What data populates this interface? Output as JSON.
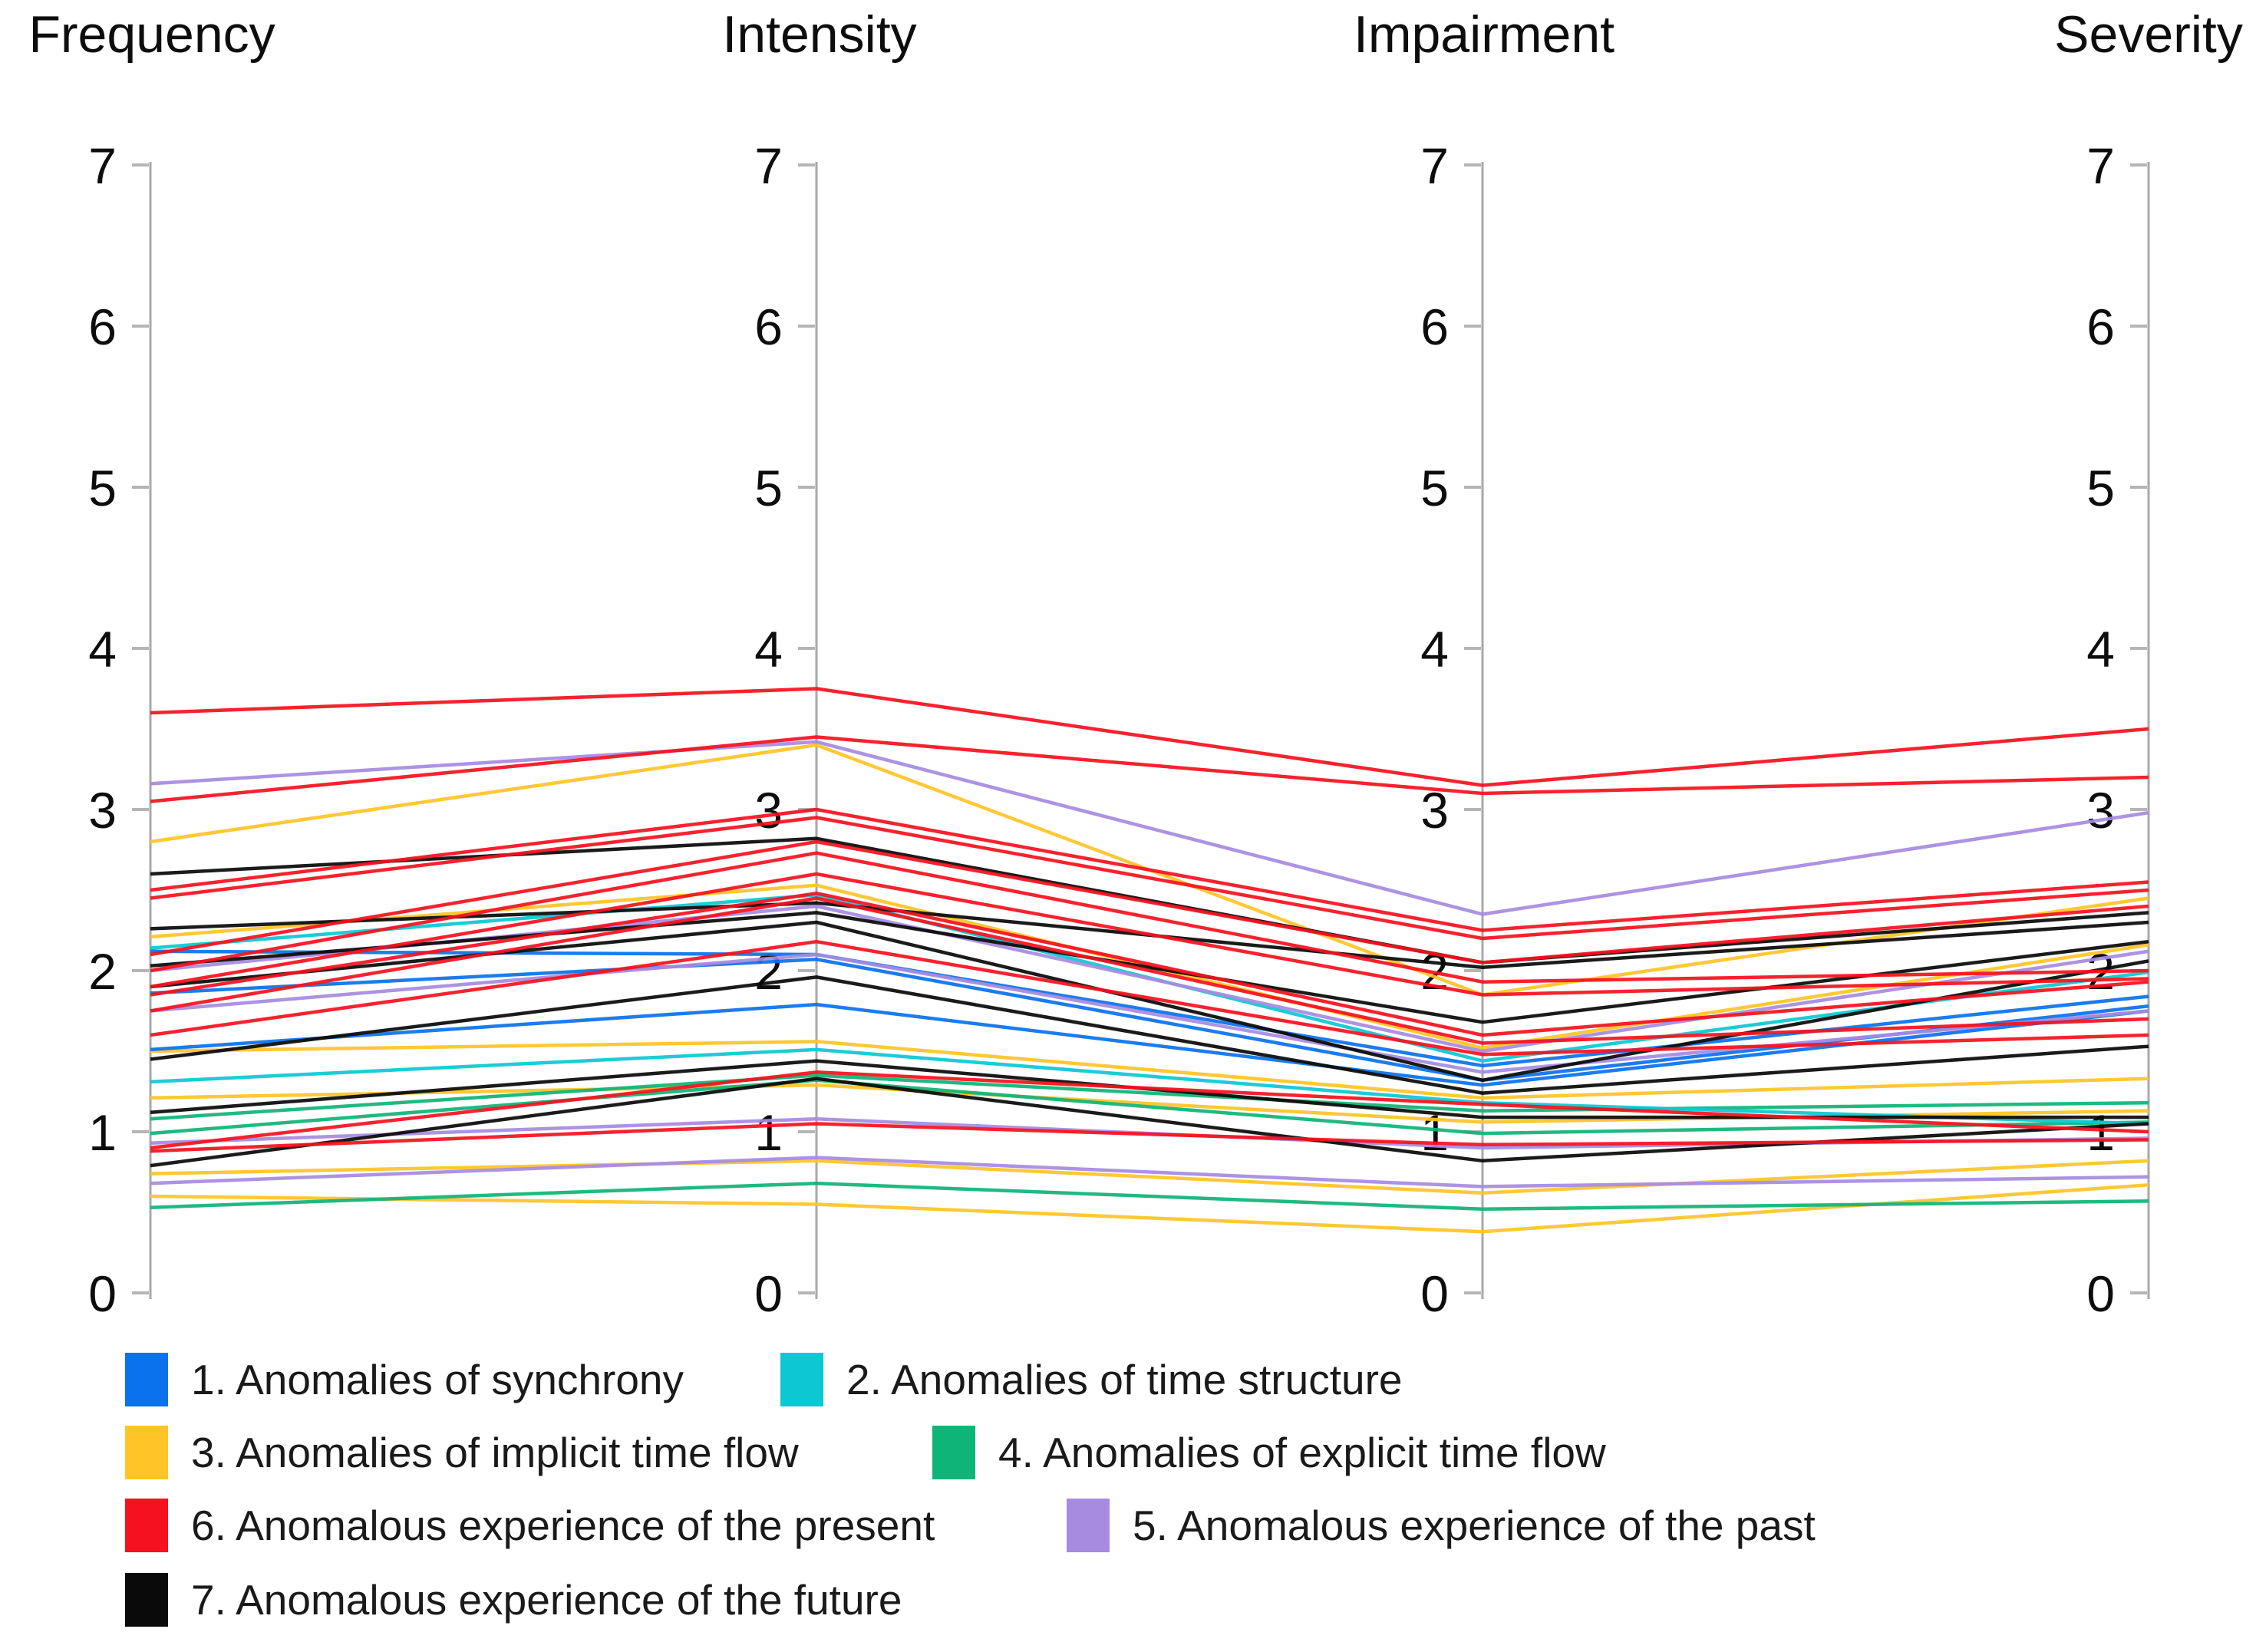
{
  "chart_data": {
    "type": "line",
    "variant": "parallel-coordinates",
    "title": "",
    "axes": [
      {
        "label": "Frequency"
      },
      {
        "label": "Intensity"
      },
      {
        "label": "Impairment"
      },
      {
        "label": "Severity"
      }
    ],
    "axis_range": [
      0,
      7
    ],
    "tick_step": 1,
    "grid": false,
    "legend_position": "bottom",
    "series": [
      {
        "name": "1. Anomalies of synchrony",
        "color": "#0a72ec",
        "lines": [
          [
            2.12,
            2.1,
            1.41,
            1.84
          ],
          [
            1.86,
            2.07,
            1.32,
            1.78
          ],
          [
            1.51,
            1.79,
            1.29,
            1.75
          ]
        ]
      },
      {
        "name": "2. Anomalies of time structure",
        "color": "#0bc8d3",
        "lines": [
          [
            2.14,
            2.47,
            1.44,
            1.99
          ],
          [
            1.31,
            1.51,
            1.18,
            1.05
          ]
        ]
      },
      {
        "name": "3. Anomalies of implicit time flow",
        "color": "#ffc427",
        "lines": [
          [
            2.8,
            3.4,
            1.85,
            2.45
          ],
          [
            2.21,
            2.53,
            1.52,
            2.16
          ],
          [
            1.5,
            1.56,
            1.21,
            1.33
          ],
          [
            1.21,
            1.29,
            1.06,
            1.13
          ],
          [
            0.74,
            0.82,
            0.62,
            0.82
          ],
          [
            0.6,
            0.55,
            0.38,
            0.67
          ]
        ]
      },
      {
        "name": "4. Anomalies of explicit time flow",
        "color": "#0fb478",
        "lines": [
          [
            1.08,
            1.35,
            1.13,
            1.18
          ],
          [
            0.99,
            1.32,
            0.99,
            1.06
          ],
          [
            0.53,
            0.68,
            0.52,
            0.57
          ]
        ]
      },
      {
        "name": "5. Anomalous experience of the past",
        "color": "#a78be1",
        "lines": [
          [
            3.16,
            3.42,
            2.35,
            2.98
          ],
          [
            2.0,
            2.4,
            1.5,
            2.12
          ],
          [
            1.75,
            2.1,
            1.37,
            1.75
          ],
          [
            0.93,
            1.08,
            0.9,
            0.96
          ],
          [
            0.68,
            0.84,
            0.66,
            0.72
          ]
        ]
      },
      {
        "name": "6. Anomalous experience of the present",
        "color": "#f5111e",
        "lines": [
          [
            3.6,
            3.75,
            3.15,
            3.5
          ],
          [
            3.05,
            3.45,
            3.1,
            3.2
          ],
          [
            2.5,
            3.0,
            2.25,
            2.55
          ],
          [
            2.45,
            2.95,
            2.2,
            2.5
          ],
          [
            2.1,
            2.8,
            2.05,
            2.4
          ],
          [
            2.0,
            2.73,
            1.93,
            2.0
          ],
          [
            1.9,
            2.6,
            1.85,
            1.95
          ],
          [
            1.85,
            2.48,
            1.6,
            1.93
          ],
          [
            1.75,
            2.45,
            1.55,
            1.7
          ],
          [
            1.6,
            2.18,
            1.48,
            1.6
          ],
          [
            0.9,
            1.37,
            1.17,
            1.0
          ],
          [
            0.88,
            1.05,
            0.92,
            0.95
          ]
        ]
      },
      {
        "name": "7. Anomalous experience of the future",
        "color": "#0a0a0a",
        "lines": [
          [
            2.6,
            2.82,
            2.05,
            2.36
          ],
          [
            2.26,
            2.42,
            2.02,
            2.3
          ],
          [
            2.03,
            2.36,
            1.68,
            2.18
          ],
          [
            1.9,
            2.3,
            1.32,
            2.06
          ],
          [
            1.45,
            1.96,
            1.24,
            1.53
          ],
          [
            1.12,
            1.44,
            1.09,
            1.09
          ],
          [
            0.79,
            1.33,
            0.82,
            1.05
          ]
        ]
      }
    ],
    "legend": {
      "items": [
        {
          "label": "1. Anomalies of synchrony",
          "color": "#0a72ec"
        },
        {
          "label": "2. Anomalies of time structure",
          "color": "#0bc8d3"
        },
        {
          "label": "3. Anomalies of implicit time flow",
          "color": "#ffc427"
        },
        {
          "label": "4. Anomalies of explicit time flow",
          "color": "#0fb478"
        },
        {
          "label": "6. Anomalous experience of the present",
          "color": "#f5111e"
        },
        {
          "label": "5. Anomalous experience of the past",
          "color": "#a78be1"
        },
        {
          "label": "7. Anomalous experience of the future",
          "color": "#0a0a0a"
        }
      ]
    },
    "style_colors": {
      "axis_line": "#a8a8a8",
      "tick_mark": "#b5b5b5",
      "tick_label": "#0d0d0d"
    }
  }
}
